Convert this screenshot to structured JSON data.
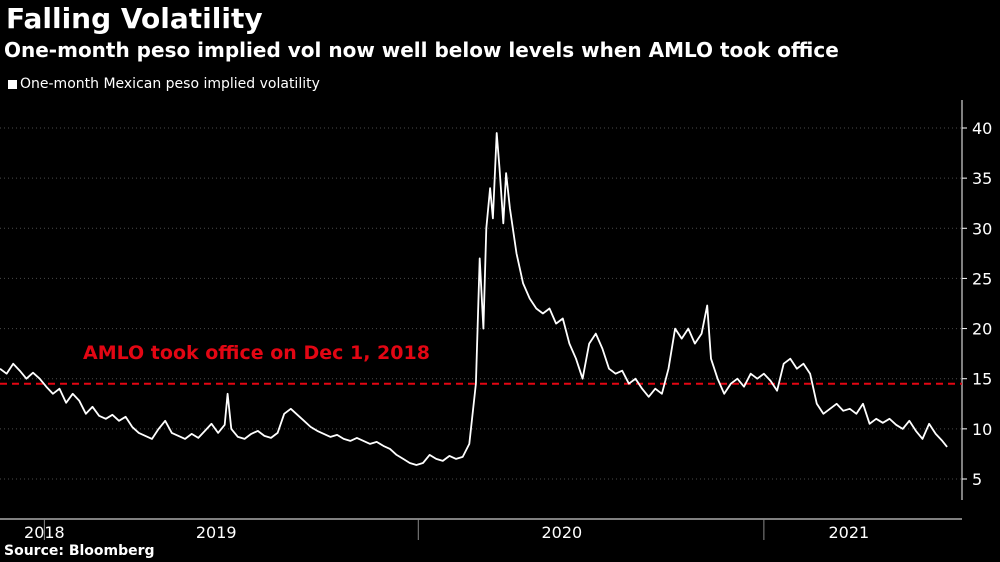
{
  "title": "Falling Volatility",
  "subtitle": "One-month peso implied vol now well below levels when AMLO took office",
  "source": "Source: Bloomberg",
  "colors": {
    "line": "#ffffff",
    "reference_line": "#e30613",
    "grid": "#4a4a4a",
    "background": "#000000"
  },
  "chart_data": {
    "type": "line",
    "ylim": [
      3,
      42
    ],
    "yticks": [
      5,
      10,
      15,
      20,
      25,
      30,
      35,
      40
    ],
    "y_axis_side": "right",
    "grid": "horizontal dotted",
    "x_range": [
      "2018-10-15",
      "2021-07-15"
    ],
    "x_ticks": [
      "2018-12-01",
      "2020-01-01",
      "2021-01-01"
    ],
    "x_labels": [
      {
        "text": "2018",
        "date": "2018-12-01"
      },
      {
        "text": "2019",
        "date": "2019-06-01"
      },
      {
        "text": "2020",
        "date": "2020-06-01"
      },
      {
        "text": "2021",
        "date": "2021-04-01"
      }
    ],
    "legend_position": "top-left",
    "series": [
      {
        "name": "One-month Mexican peso implied volatility",
        "points": [
          [
            "2018-10-15",
            16.0
          ],
          [
            "2018-10-22",
            15.5
          ],
          [
            "2018-10-29",
            16.5
          ],
          [
            "2018-11-05",
            15.8
          ],
          [
            "2018-11-12",
            15.0
          ],
          [
            "2018-11-19",
            15.6
          ],
          [
            "2018-11-26",
            15.0
          ],
          [
            "2018-12-03",
            14.2
          ],
          [
            "2018-12-10",
            13.5
          ],
          [
            "2018-12-17",
            14.0
          ],
          [
            "2018-12-24",
            12.6
          ],
          [
            "2018-12-31",
            13.5
          ],
          [
            "2019-01-07",
            12.8
          ],
          [
            "2019-01-14",
            11.5
          ],
          [
            "2019-01-21",
            12.2
          ],
          [
            "2019-01-28",
            11.3
          ],
          [
            "2019-02-04",
            11.0
          ],
          [
            "2019-02-11",
            11.4
          ],
          [
            "2019-02-18",
            10.8
          ],
          [
            "2019-02-25",
            11.2
          ],
          [
            "2019-03-04",
            10.2
          ],
          [
            "2019-03-11",
            9.6
          ],
          [
            "2019-03-18",
            9.3
          ],
          [
            "2019-03-25",
            9.0
          ],
          [
            "2019-04-01",
            10.0
          ],
          [
            "2019-04-08",
            10.8
          ],
          [
            "2019-04-15",
            9.6
          ],
          [
            "2019-04-22",
            9.3
          ],
          [
            "2019-04-29",
            9.0
          ],
          [
            "2019-05-06",
            9.5
          ],
          [
            "2019-05-13",
            9.1
          ],
          [
            "2019-05-20",
            9.8
          ],
          [
            "2019-05-27",
            10.5
          ],
          [
            "2019-06-03",
            9.6
          ],
          [
            "2019-06-10",
            10.4
          ],
          [
            "2019-06-13",
            13.5
          ],
          [
            "2019-06-17",
            10.0
          ],
          [
            "2019-06-24",
            9.2
          ],
          [
            "2019-07-01",
            9.0
          ],
          [
            "2019-07-08",
            9.5
          ],
          [
            "2019-07-15",
            9.8
          ],
          [
            "2019-07-22",
            9.3
          ],
          [
            "2019-07-29",
            9.1
          ],
          [
            "2019-08-05",
            9.6
          ],
          [
            "2019-08-12",
            11.5
          ],
          [
            "2019-08-19",
            12.0
          ],
          [
            "2019-08-26",
            11.4
          ],
          [
            "2019-09-02",
            10.8
          ],
          [
            "2019-09-09",
            10.2
          ],
          [
            "2019-09-16",
            9.8
          ],
          [
            "2019-09-23",
            9.5
          ],
          [
            "2019-09-30",
            9.2
          ],
          [
            "2019-10-07",
            9.4
          ],
          [
            "2019-10-14",
            9.0
          ],
          [
            "2019-10-21",
            8.8
          ],
          [
            "2019-10-28",
            9.1
          ],
          [
            "2019-11-04",
            8.8
          ],
          [
            "2019-11-11",
            8.5
          ],
          [
            "2019-11-18",
            8.7
          ],
          [
            "2019-11-25",
            8.3
          ],
          [
            "2019-12-02",
            8.0
          ],
          [
            "2019-12-09",
            7.4
          ],
          [
            "2019-12-16",
            7.0
          ],
          [
            "2019-12-23",
            6.6
          ],
          [
            "2019-12-30",
            6.4
          ],
          [
            "2020-01-06",
            6.6
          ],
          [
            "2020-01-13",
            7.4
          ],
          [
            "2020-01-20",
            7.0
          ],
          [
            "2020-01-27",
            6.8
          ],
          [
            "2020-02-03",
            7.3
          ],
          [
            "2020-02-10",
            7.0
          ],
          [
            "2020-02-17",
            7.2
          ],
          [
            "2020-02-24",
            8.5
          ],
          [
            "2020-03-02",
            14.5
          ],
          [
            "2020-03-06",
            27.0
          ],
          [
            "2020-03-10",
            20.0
          ],
          [
            "2020-03-13",
            30.0
          ],
          [
            "2020-03-17",
            34.0
          ],
          [
            "2020-03-20",
            31.0
          ],
          [
            "2020-03-24",
            39.5
          ],
          [
            "2020-03-27",
            36.0
          ],
          [
            "2020-03-31",
            30.5
          ],
          [
            "2020-04-03",
            35.5
          ],
          [
            "2020-04-07",
            32.0
          ],
          [
            "2020-04-14",
            27.5
          ],
          [
            "2020-04-21",
            24.5
          ],
          [
            "2020-04-28",
            23.0
          ],
          [
            "2020-05-05",
            22.0
          ],
          [
            "2020-05-12",
            21.5
          ],
          [
            "2020-05-19",
            22.0
          ],
          [
            "2020-05-26",
            20.5
          ],
          [
            "2020-06-02",
            21.0
          ],
          [
            "2020-06-09",
            18.5
          ],
          [
            "2020-06-16",
            17.0
          ],
          [
            "2020-06-23",
            15.0
          ],
          [
            "2020-06-30",
            18.5
          ],
          [
            "2020-07-07",
            19.5
          ],
          [
            "2020-07-14",
            18.0
          ],
          [
            "2020-07-21",
            16.0
          ],
          [
            "2020-07-28",
            15.5
          ],
          [
            "2020-08-04",
            15.8
          ],
          [
            "2020-08-11",
            14.5
          ],
          [
            "2020-08-18",
            15.0
          ],
          [
            "2020-08-25",
            14.0
          ],
          [
            "2020-09-01",
            13.2
          ],
          [
            "2020-09-08",
            14.0
          ],
          [
            "2020-09-15",
            13.5
          ],
          [
            "2020-09-22",
            16.0
          ],
          [
            "2020-09-29",
            20.0
          ],
          [
            "2020-10-06",
            19.0
          ],
          [
            "2020-10-13",
            20.0
          ],
          [
            "2020-10-20",
            18.5
          ],
          [
            "2020-10-27",
            19.5
          ],
          [
            "2020-11-02",
            22.3
          ],
          [
            "2020-11-06",
            17.0
          ],
          [
            "2020-11-13",
            15.0
          ],
          [
            "2020-11-20",
            13.5
          ],
          [
            "2020-11-27",
            14.5
          ],
          [
            "2020-12-04",
            15.0
          ],
          [
            "2020-12-11",
            14.2
          ],
          [
            "2020-12-18",
            15.5
          ],
          [
            "2020-12-25",
            15.0
          ],
          [
            "2021-01-01",
            15.5
          ],
          [
            "2021-01-08",
            14.8
          ],
          [
            "2021-01-15",
            13.8
          ],
          [
            "2021-01-22",
            16.5
          ],
          [
            "2021-01-29",
            17.0
          ],
          [
            "2021-02-05",
            16.0
          ],
          [
            "2021-02-12",
            16.5
          ],
          [
            "2021-02-19",
            15.5
          ],
          [
            "2021-02-26",
            12.5
          ],
          [
            "2021-03-05",
            11.5
          ],
          [
            "2021-03-12",
            12.0
          ],
          [
            "2021-03-19",
            12.5
          ],
          [
            "2021-03-26",
            11.8
          ],
          [
            "2021-04-02",
            12.0
          ],
          [
            "2021-04-09",
            11.5
          ],
          [
            "2021-04-16",
            12.5
          ],
          [
            "2021-04-23",
            10.5
          ],
          [
            "2021-04-30",
            11.0
          ],
          [
            "2021-05-07",
            10.6
          ],
          [
            "2021-05-14",
            11.0
          ],
          [
            "2021-05-21",
            10.4
          ],
          [
            "2021-05-28",
            10.0
          ],
          [
            "2021-06-04",
            10.8
          ],
          [
            "2021-06-11",
            9.8
          ],
          [
            "2021-06-18",
            9.0
          ],
          [
            "2021-06-25",
            10.5
          ],
          [
            "2021-07-02",
            9.5
          ],
          [
            "2021-07-09",
            8.8
          ],
          [
            "2021-07-14",
            8.2
          ]
        ]
      }
    ],
    "reference_line": {
      "y": 14.5,
      "label": "AMLO took office on Dec 1, 2018"
    }
  }
}
